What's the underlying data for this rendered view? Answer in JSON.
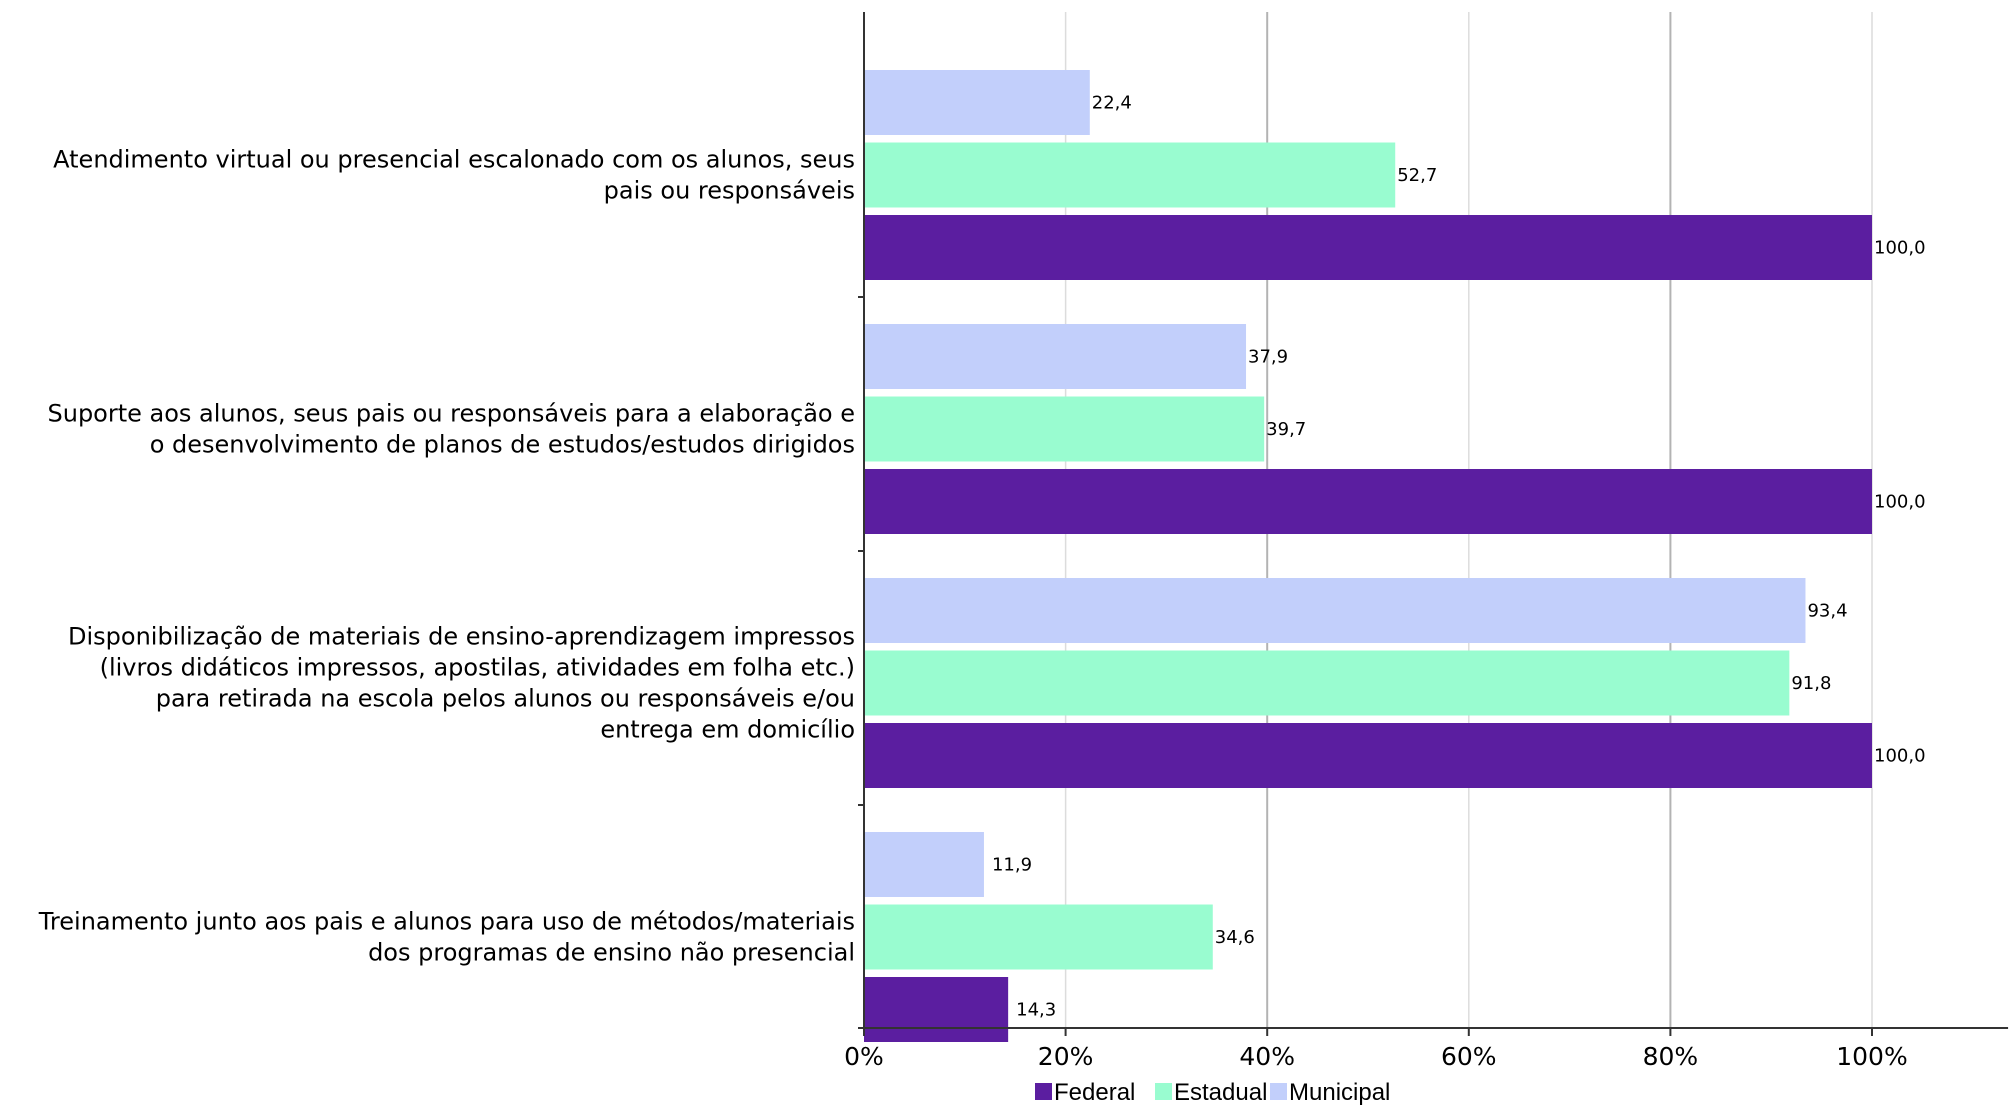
{
  "chart_data": {
    "type": "bar",
    "orientation": "horizontal",
    "categories": [
      [
        "Atendimento virtual ou presencial escalonado com os alunos, seus",
        "pais ou responsáveis"
      ],
      [
        "Suporte aos alunos, seus pais ou responsáveis para a elaboração e",
        "o desenvolvimento de planos de estudos/estudos dirigidos"
      ],
      [
        "Disponibilização de materiais de ensino-aprendizagem impressos",
        "(livros didáticos impressos, apostilas, atividades em folha etc.)",
        "para retirada na escola pelos alunos ou responsáveis e/ou",
        "entrega em domicílio"
      ],
      [
        "Treinamento junto aos pais e alunos para uso de métodos/materiais",
        "dos programas de ensino não presencial"
      ]
    ],
    "series": [
      {
        "name": "Municipal",
        "color": "#c2cffb",
        "values": [
          22.4,
          37.9,
          93.4,
          11.9
        ],
        "labels": [
          "22,4",
          "37,9",
          "93,4",
          "11,9"
        ]
      },
      {
        "name": "Estadual",
        "color": "#99fcd0",
        "values": [
          52.7,
          39.7,
          91.8,
          34.6
        ],
        "labels": [
          "52,7",
          "39,7",
          "91,8",
          "34,6"
        ]
      },
      {
        "name": "Federal",
        "color": "#5b1ea0",
        "values": [
          100.0,
          100.0,
          100.0,
          14.3
        ],
        "labels": [
          "100,0",
          "100,0",
          "100,0",
          "14,3"
        ]
      }
    ],
    "x_ticks": [
      0,
      20,
      40,
      60,
      80,
      100
    ],
    "x_tick_labels": [
      "0%",
      "20%",
      "40%",
      "60%",
      "80%",
      "100%"
    ],
    "xlim": [
      0,
      113.5
    ],
    "grid": true,
    "legend": {
      "placement": "bottom",
      "order": [
        "Federal",
        "Estadual",
        "Municipal"
      ]
    }
  }
}
